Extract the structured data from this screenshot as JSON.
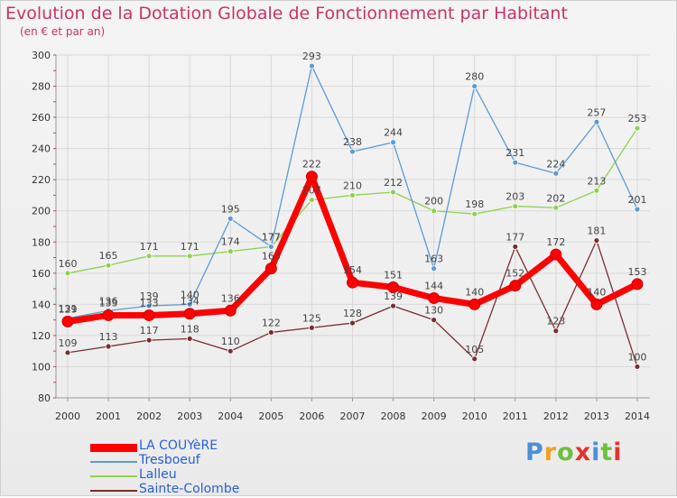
{
  "title": "Evolution de la Dotation Globale de Fonctionnement par Habitant",
  "subtitle": "(en € et par an)",
  "logo": {
    "text": "Proxiti",
    "colors": [
      "#4a90d9",
      "#f0a21e",
      "#6fbf3a",
      "#e3332b",
      "#4a90d9",
      "#6fbf3a",
      "#e3332b"
    ]
  },
  "chart_data": {
    "type": "line",
    "title": "Evolution de la Dotation Globale de Fonctionnement par Habitant",
    "subtitle": "(en € et par an)",
    "x": [
      "2000",
      "2001",
      "2002",
      "2003",
      "2004",
      "2005",
      "2006",
      "2007",
      "2008",
      "2009",
      "2010",
      "2011",
      "2012",
      "2013",
      "2014"
    ],
    "yticks": [
      80,
      100,
      120,
      140,
      160,
      180,
      200,
      220,
      240,
      260,
      280,
      300
    ],
    "ylim": [
      80,
      300
    ],
    "grid": true,
    "legend_position": "bottom-left",
    "series": [
      {
        "name": "LA COUYèRE",
        "color": "#ff0000",
        "values": [
          129,
          133,
          133,
          134,
          136,
          163,
          222,
          154,
          151,
          144,
          140,
          152,
          172,
          140,
          153
        ]
      },
      {
        "name": "Tresboeuf",
        "color": "#5b9bd5",
        "values": [
          131,
          136,
          139,
          140,
          195,
          177,
          293,
          238,
          244,
          163,
          280,
          231,
          224,
          257,
          201
        ]
      },
      {
        "name": "Lalleu",
        "color": "#8fd14f",
        "values": [
          160,
          165,
          171,
          171,
          174,
          177,
          207,
          210,
          212,
          200,
          198,
          203,
          202,
          213,
          253
        ]
      },
      {
        "name": "Sainte-Colombe",
        "color": "#7a2e2e",
        "values": [
          109,
          113,
          117,
          118,
          110,
          122,
          125,
          128,
          139,
          130,
          105,
          177,
          123,
          181,
          100
        ]
      }
    ]
  }
}
